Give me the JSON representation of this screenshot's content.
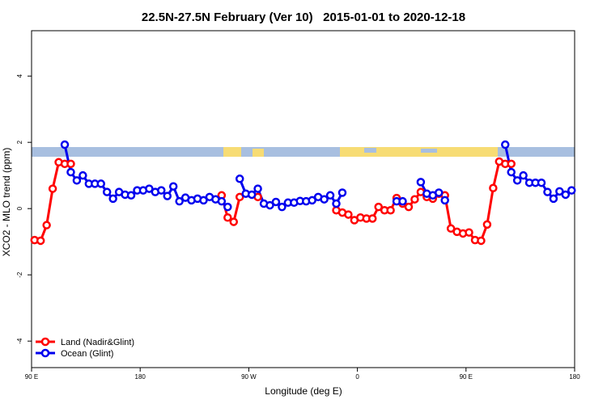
{
  "chart_data": {
    "type": "line",
    "title": "22.5N-27.5N February (Ver 10)   2015-01-01 to 2020-12-18",
    "xlabel": "Longitude (deg E)",
    "ylabel": "XCO2 - MLO trend (ppm)",
    "x": [
      92.5,
      97.5,
      102.5,
      107.5,
      112.5,
      117.5,
      122.5,
      127.5,
      132.5,
      137.5,
      142.5,
      147.5,
      152.5,
      157.5,
      162.5,
      167.5,
      172.5,
      177.5,
      182.5,
      187.5,
      192.5,
      197.5,
      202.5,
      207.5,
      212.5,
      217.5,
      222.5,
      227.5,
      232.5,
      237.5,
      242.5,
      247.5,
      252.5,
      257.5,
      262.5,
      267.5,
      272.5,
      277.5,
      282.5,
      287.5,
      292.5,
      297.5,
      302.5,
      307.5,
      312.5,
      317.5,
      322.5,
      327.5,
      332.5,
      337.5,
      342.5,
      347.5,
      352.5,
      357.5,
      362.5,
      367.5,
      372.5,
      377.5,
      382.5,
      387.5,
      392.5,
      397.5,
      402.5,
      407.5,
      412.5,
      417.5,
      422.5,
      427.5,
      432.5,
      437.5,
      442.5,
      447.5,
      452.5,
      457.5,
      462.5,
      467.5,
      472.5,
      477.5,
      482.5,
      487.5,
      492.5,
      497.5,
      502.5,
      507.5,
      512.5,
      517.5,
      522.5,
      527.5,
      532.5,
      537.5
    ],
    "series": [
      {
        "name": "Land (Nadir&Glint)",
        "color": "#ff0000",
        "values": [
          -0.95,
          -0.97,
          -0.5,
          0.6,
          1.4,
          1.35,
          1.35,
          null,
          null,
          null,
          null,
          null,
          null,
          null,
          null,
          null,
          null,
          null,
          null,
          null,
          null,
          null,
          null,
          null,
          null,
          null,
          null,
          null,
          null,
          null,
          null,
          0.4,
          -0.27,
          -0.4,
          0.35,
          null,
          null,
          0.35,
          null,
          null,
          null,
          null,
          null,
          null,
          null,
          null,
          null,
          null,
          null,
          null,
          -0.05,
          -0.12,
          -0.18,
          -0.35,
          -0.27,
          -0.3,
          -0.3,
          0.05,
          -0.05,
          -0.05,
          0.32,
          0.15,
          0.05,
          0.28,
          0.5,
          0.35,
          0.3,
          0.45,
          0.4,
          -0.6,
          -0.7,
          -0.75,
          -0.72,
          -0.95,
          -0.97,
          -0.48,
          0.62,
          1.42,
          1.35,
          1.35,
          null,
          null,
          null,
          null,
          null,
          null,
          null,
          null,
          null,
          null
        ]
      },
      {
        "name": "Ocean (Glint)",
        "color": "#0000ee",
        "values": [
          null,
          null,
          null,
          null,
          null,
          1.93,
          1.1,
          0.85,
          1.0,
          0.75,
          0.75,
          0.75,
          0.5,
          0.3,
          0.5,
          0.42,
          0.4,
          0.55,
          0.55,
          0.6,
          0.5,
          0.55,
          0.38,
          0.67,
          0.22,
          0.33,
          0.25,
          0.3,
          0.25,
          0.35,
          0.28,
          0.22,
          0.05,
          null,
          0.9,
          0.45,
          0.42,
          0.6,
          0.15,
          0.1,
          0.2,
          0.05,
          0.18,
          0.18,
          0.23,
          0.22,
          0.25,
          0.35,
          0.28,
          0.4,
          0.15,
          0.48,
          null,
          null,
          null,
          null,
          null,
          null,
          null,
          null,
          0.22,
          0.22,
          null,
          null,
          0.8,
          0.45,
          0.4,
          0.48,
          0.25,
          null,
          null,
          null,
          null,
          null,
          null,
          null,
          null,
          null,
          1.93,
          1.1,
          0.85,
          1.0,
          0.78,
          0.78,
          0.78,
          0.5,
          0.3,
          0.52,
          0.42,
          0.55
        ]
      }
    ],
    "xlim": [
      90,
      540
    ],
    "xticks": [
      {
        "value": 90,
        "label": "90 E"
      },
      180,
      {
        "value": 270,
        "label": "90 W"
      },
      {
        "value": 360,
        "label": "0"
      },
      {
        "value": 450,
        "label": "90 E"
      },
      {
        "value": 540,
        "label": "180"
      }
    ],
    "ylim": [
      -4.8,
      5.37
    ],
    "yticks": [
      -4,
      -2,
      0,
      2,
      4
    ],
    "legend": "bottomleft"
  }
}
